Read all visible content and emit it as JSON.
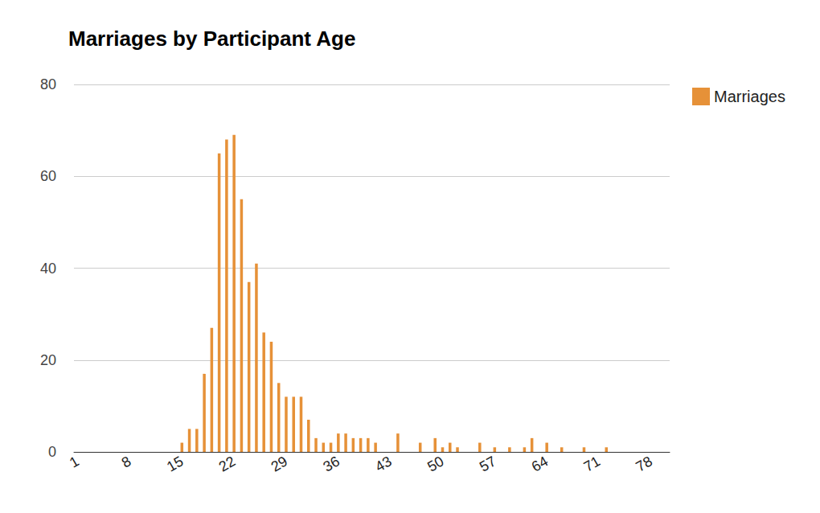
{
  "chart_data": {
    "type": "bar",
    "title": "Marriages by Participant Age",
    "categories": [
      "1",
      null,
      null,
      null,
      null,
      null,
      null,
      "8",
      null,
      null,
      null,
      null,
      null,
      null,
      "15",
      null,
      null,
      null,
      null,
      null,
      null,
      "22",
      null,
      null,
      null,
      null,
      null,
      null,
      "29",
      null,
      null,
      null,
      null,
      null,
      null,
      "36",
      null,
      null,
      null,
      null,
      null,
      null,
      "43",
      null,
      null,
      null,
      null,
      null,
      null,
      "50",
      null,
      null,
      null,
      null,
      null,
      null,
      "57",
      null,
      null,
      null,
      null,
      null,
      null,
      "64",
      null,
      null,
      null,
      null,
      null,
      null,
      "71",
      null,
      null,
      null,
      null,
      null,
      null,
      "78",
      null,
      null
    ],
    "series": [
      {
        "name": "Marriages",
        "color": "#e69138",
        "values": [
          0,
          0,
          0,
          0,
          0,
          0,
          0,
          0,
          0,
          0,
          0,
          0,
          0,
          0,
          2,
          5,
          5,
          17,
          27,
          65,
          68,
          69,
          55,
          37,
          41,
          26,
          24,
          15,
          12,
          12,
          12,
          7,
          3,
          2,
          2,
          4,
          4,
          3,
          3,
          3,
          2,
          0,
          0,
          4,
          0,
          0,
          2,
          0,
          3,
          1,
          2,
          1,
          0,
          0,
          2,
          0,
          1,
          0,
          1,
          0,
          1,
          3,
          0,
          2,
          0,
          1,
          0,
          0,
          1,
          0,
          0,
          1,
          0,
          0,
          0,
          0,
          0,
          0,
          0,
          0
        ]
      }
    ],
    "ylim": [
      0,
      80
    ],
    "yticks": [
      0,
      20,
      40,
      60,
      80
    ],
    "grid": true,
    "legend": "right"
  }
}
